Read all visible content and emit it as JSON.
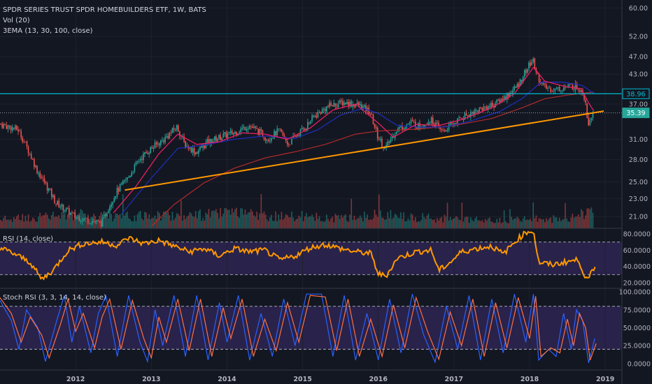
{
  "header": {
    "title": "SPDR SERIES TRUST SPDR HOMEBUILDERS ETF, 1W, BATS",
    "volume_label": "Vol (20)",
    "ema_label": "3EMA (13, 30, 100, close)"
  },
  "colors": {
    "background": "#131722",
    "up": "#26a69a",
    "down": "#ef5350",
    "ema_fast": "#e91e63",
    "ema_mid": "#1e2db5",
    "ema_slow": "#b22a2a",
    "trendline": "#ff9800",
    "horizontal_line": "#00bcd4",
    "rsi": "#ff9800",
    "stoch_k": "#2962ff",
    "stoch_d": "#ff7043",
    "band": "#3d2c6b"
  },
  "chart_data": [
    {
      "type": "candlestick",
      "name": "price",
      "x_ticks": [
        "2012",
        "2013",
        "2014",
        "2015",
        "2016",
        "2017",
        "2018",
        "2019"
      ],
      "y_scale": "log",
      "y_ticks": [
        "60.00",
        "52.00",
        "47.00",
        "43.00",
        "37.00",
        "31.00",
        "28.00",
        "25.00",
        "23.00",
        "21.00"
      ],
      "ylim": [
        19.8,
        62
      ],
      "price_path": [
        [
          2011.0,
          33.5
        ],
        [
          2011.25,
          32.5
        ],
        [
          2011.5,
          26.5
        ],
        [
          2011.75,
          22.5
        ],
        [
          2012.0,
          21.0
        ],
        [
          2012.35,
          20.3
        ],
        [
          2012.42,
          21.6
        ],
        [
          2012.55,
          23.8
        ],
        [
          2012.7,
          25.5
        ],
        [
          2012.85,
          28.0
        ],
        [
          2013.0,
          29.5
        ],
        [
          2013.18,
          31.0
        ],
        [
          2013.35,
          33.0
        ],
        [
          2013.45,
          30.2
        ],
        [
          2013.6,
          29.0
        ],
        [
          2013.75,
          30.5
        ],
        [
          2013.95,
          31.5
        ],
        [
          2014.1,
          32.0
        ],
        [
          2014.3,
          33.2
        ],
        [
          2014.45,
          32.0
        ],
        [
          2014.55,
          31.0
        ],
        [
          2014.7,
          32.4
        ],
        [
          2014.82,
          30.2
        ],
        [
          2014.92,
          31.5
        ],
        [
          2015.05,
          33.0
        ],
        [
          2015.15,
          34.6
        ],
        [
          2015.35,
          36.6
        ],
        [
          2015.55,
          37.3
        ],
        [
          2015.75,
          36.8
        ],
        [
          2015.9,
          35.5
        ],
        [
          2016.0,
          31.5
        ],
        [
          2016.1,
          29.5
        ],
        [
          2016.25,
          32.5
        ],
        [
          2016.45,
          33.8
        ],
        [
          2016.55,
          33.0
        ],
        [
          2016.7,
          34.2
        ],
        [
          2016.85,
          32.2
        ],
        [
          2016.95,
          33.0
        ],
        [
          2017.1,
          34.5
        ],
        [
          2017.25,
          35.5
        ],
        [
          2017.4,
          36.3
        ],
        [
          2017.55,
          37.0
        ],
        [
          2017.7,
          38.5
        ],
        [
          2017.85,
          40.5
        ],
        [
          2017.95,
          43.5
        ],
        [
          2018.05,
          46.2
        ],
        [
          2018.12,
          42.3
        ],
        [
          2018.2,
          40.2
        ],
        [
          2018.35,
          39.8
        ],
        [
          2018.5,
          40.3
        ],
        [
          2018.6,
          40.5
        ],
        [
          2018.7,
          39.8
        ],
        [
          2018.75,
          37.5
        ],
        [
          2018.78,
          33.5
        ],
        [
          2018.82,
          35.0
        ]
      ],
      "ema_fast_path": [
        [
          2012.5,
          21.4
        ],
        [
          2012.8,
          24.5
        ],
        [
          2013.1,
          28.8
        ],
        [
          2013.35,
          31.8
        ],
        [
          2013.6,
          30.2
        ],
        [
          2013.9,
          30.6
        ],
        [
          2014.2,
          32.0
        ],
        [
          2014.5,
          31.8
        ],
        [
          2014.8,
          31.0
        ],
        [
          2015.1,
          32.8
        ],
        [
          2015.4,
          35.9
        ],
        [
          2015.7,
          37.0
        ],
        [
          2016.0,
          33.6
        ],
        [
          2016.2,
          31.3
        ],
        [
          2016.5,
          33.4
        ],
        [
          2016.8,
          33.2
        ],
        [
          2017.1,
          34.2
        ],
        [
          2017.5,
          36.3
        ],
        [
          2017.8,
          39.0
        ],
        [
          2018.05,
          44.5
        ],
        [
          2018.2,
          41.5
        ],
        [
          2018.5,
          40.3
        ],
        [
          2018.68,
          40.0
        ],
        [
          2018.78,
          37.2
        ],
        [
          2018.85,
          35.7
        ]
      ],
      "ema_mid_path": [
        [
          2012.6,
          21.2
        ],
        [
          2013.0,
          25.5
        ],
        [
          2013.35,
          29.6
        ],
        [
          2013.7,
          30.1
        ],
        [
          2014.1,
          31.0
        ],
        [
          2014.5,
          31.5
        ],
        [
          2014.9,
          31.1
        ],
        [
          2015.2,
          32.5
        ],
        [
          2015.5,
          35.0
        ],
        [
          2015.8,
          36.2
        ],
        [
          2016.0,
          35.3
        ],
        [
          2016.25,
          33.2
        ],
        [
          2016.6,
          32.9
        ],
        [
          2016.9,
          33.0
        ],
        [
          2017.2,
          33.9
        ],
        [
          2017.6,
          35.6
        ],
        [
          2017.9,
          38.0
        ],
        [
          2018.15,
          41.3
        ],
        [
          2018.45,
          41.3
        ],
        [
          2018.7,
          40.6
        ],
        [
          2018.85,
          39.0
        ]
      ],
      "ema_slow_path": [
        [
          2013.0,
          20.0
        ],
        [
          2013.3,
          22.3
        ],
        [
          2013.7,
          24.9
        ],
        [
          2014.1,
          26.8
        ],
        [
          2014.5,
          28.2
        ],
        [
          2014.9,
          29.1
        ],
        [
          2015.3,
          30.2
        ],
        [
          2015.7,
          31.8
        ],
        [
          2016.0,
          32.3
        ],
        [
          2016.5,
          32.6
        ],
        [
          2017.0,
          33.2
        ],
        [
          2017.5,
          34.4
        ],
        [
          2017.9,
          36.3
        ],
        [
          2018.2,
          38.0
        ],
        [
          2018.5,
          38.7
        ],
        [
          2018.85,
          39.3
        ]
      ],
      "horizontal_line": 38.96,
      "trendline": [
        [
          2012.65,
          24.0
        ],
        [
          2018.98,
          35.7
        ]
      ],
      "volume_profile": [
        [
          2011.0,
          0.35
        ],
        [
          2011.5,
          0.45
        ],
        [
          2012.0,
          0.55
        ],
        [
          2012.5,
          0.5
        ],
        [
          2012.75,
          0.45
        ],
        [
          2013.0,
          0.55
        ],
        [
          2013.5,
          0.5
        ],
        [
          2014.0,
          0.6
        ],
        [
          2014.5,
          0.5
        ],
        [
          2015.0,
          0.45
        ],
        [
          2015.5,
          0.4
        ],
        [
          2016.0,
          0.55
        ],
        [
          2016.5,
          0.45
        ],
        [
          2017.0,
          0.35
        ],
        [
          2017.5,
          0.3
        ],
        [
          2018.0,
          0.35
        ],
        [
          2018.5,
          0.4
        ],
        [
          2018.82,
          0.7
        ]
      ],
      "price_badges": [
        {
          "value": "38.96",
          "color": "#00bcd4",
          "text_color": "#00bcd4"
        },
        {
          "value": "35.39",
          "color": "#26a69a",
          "text_color": "#ffffff"
        }
      ]
    },
    {
      "type": "line",
      "name": "RSI",
      "label": "RSI (14, close)",
      "y_ticks": [
        "80.0000",
        "60.0000",
        "40.0000",
        "20.0000"
      ],
      "ylim": [
        14,
        86
      ],
      "upper_band": 70,
      "lower_band": 30,
      "path": [
        [
          2011.0,
          63
        ],
        [
          2011.2,
          55
        ],
        [
          2011.4,
          45
        ],
        [
          2011.55,
          24
        ],
        [
          2011.7,
          35
        ],
        [
          2011.9,
          60
        ],
        [
          2012.1,
          68
        ],
        [
          2012.35,
          70
        ],
        [
          2012.55,
          66
        ],
        [
          2012.7,
          75
        ],
        [
          2012.9,
          68
        ],
        [
          2013.1,
          72
        ],
        [
          2013.3,
          65
        ],
        [
          2013.5,
          58
        ],
        [
          2013.7,
          62
        ],
        [
          2013.9,
          53
        ],
        [
          2014.1,
          62
        ],
        [
          2014.3,
          58
        ],
        [
          2014.5,
          60
        ],
        [
          2014.7,
          48
        ],
        [
          2014.9,
          53
        ],
        [
          2015.1,
          63
        ],
        [
          2015.3,
          67
        ],
        [
          2015.5,
          62
        ],
        [
          2015.7,
          58
        ],
        [
          2015.9,
          56
        ],
        [
          2016.0,
          31
        ],
        [
          2016.1,
          28
        ],
        [
          2016.25,
          50
        ],
        [
          2016.5,
          58
        ],
        [
          2016.7,
          60
        ],
        [
          2016.8,
          35
        ],
        [
          2016.95,
          45
        ],
        [
          2017.1,
          58
        ],
        [
          2017.3,
          62
        ],
        [
          2017.5,
          65
        ],
        [
          2017.65,
          55
        ],
        [
          2017.8,
          70
        ],
        [
          2017.95,
          82
        ],
        [
          2018.05,
          84
        ],
        [
          2018.12,
          45
        ],
        [
          2018.3,
          42
        ],
        [
          2018.5,
          46
        ],
        [
          2018.65,
          48
        ],
        [
          2018.72,
          30
        ],
        [
          2018.78,
          22
        ],
        [
          2018.82,
          34
        ],
        [
          2018.87,
          38
        ]
      ]
    },
    {
      "type": "line",
      "name": "Stoch RSI",
      "label": "Stoch RSI (3, 3, 14, 14, close)",
      "y_ticks": [
        "100.0000",
        "75.0000",
        "50.0000",
        "25.0000",
        "0.0000"
      ],
      "ylim": [
        -8,
        104
      ],
      "upper_band": 80,
      "lower_band": 20,
      "k_series": [
        [
          2011.0,
          88
        ],
        [
          2011.15,
          60
        ],
        [
          2011.25,
          20
        ],
        [
          2011.35,
          75
        ],
        [
          2011.5,
          50
        ],
        [
          2011.6,
          3
        ],
        [
          2011.75,
          60
        ],
        [
          2011.85,
          95
        ],
        [
          2011.95,
          30
        ],
        [
          2012.05,
          80
        ],
        [
          2012.2,
          15
        ],
        [
          2012.3,
          70
        ],
        [
          2012.4,
          95
        ],
        [
          2012.55,
          10
        ],
        [
          2012.7,
          95
        ],
        [
          2012.85,
          30
        ],
        [
          2012.95,
          3
        ],
        [
          2013.05,
          75
        ],
        [
          2013.15,
          25
        ],
        [
          2013.3,
          95
        ],
        [
          2013.45,
          10
        ],
        [
          2013.6,
          95
        ],
        [
          2013.75,
          5
        ],
        [
          2013.9,
          85
        ],
        [
          2014.0,
          30
        ],
        [
          2014.15,
          95
        ],
        [
          2014.3,
          5
        ],
        [
          2014.45,
          70
        ],
        [
          2014.6,
          10
        ],
        [
          2014.75,
          90
        ],
        [
          2014.9,
          25
        ],
        [
          2015.05,
          97
        ],
        [
          2015.25,
          97
        ],
        [
          2015.4,
          10
        ],
        [
          2015.55,
          95
        ],
        [
          2015.7,
          5
        ],
        [
          2015.85,
          70
        ],
        [
          2016.0,
          5
        ],
        [
          2016.15,
          90
        ],
        [
          2016.3,
          15
        ],
        [
          2016.45,
          97
        ],
        [
          2016.6,
          40
        ],
        [
          2016.75,
          2
        ],
        [
          2016.9,
          80
        ],
        [
          2017.05,
          20
        ],
        [
          2017.2,
          95
        ],
        [
          2017.35,
          5
        ],
        [
          2017.5,
          90
        ],
        [
          2017.65,
          15
        ],
        [
          2017.8,
          97
        ],
        [
          2017.95,
          30
        ],
        [
          2018.05,
          97
        ],
        [
          2018.12,
          5
        ],
        [
          2018.25,
          20
        ],
        [
          2018.35,
          10
        ],
        [
          2018.45,
          70
        ],
        [
          2018.55,
          20
        ],
        [
          2018.62,
          75
        ],
        [
          2018.7,
          60
        ],
        [
          2018.78,
          1
        ],
        [
          2018.86,
          35
        ]
      ],
      "d_series": [
        [
          2011.0,
          92
        ],
        [
          2011.15,
          70
        ],
        [
          2011.28,
          30
        ],
        [
          2011.4,
          65
        ],
        [
          2011.55,
          40
        ],
        [
          2011.65,
          8
        ],
        [
          2011.8,
          55
        ],
        [
          2011.9,
          90
        ],
        [
          2012.0,
          45
        ],
        [
          2012.1,
          70
        ],
        [
          2012.25,
          22
        ],
        [
          2012.35,
          65
        ],
        [
          2012.45,
          90
        ],
        [
          2012.6,
          20
        ],
        [
          2012.75,
          88
        ],
        [
          2012.9,
          35
        ],
        [
          2013.0,
          8
        ],
        [
          2013.1,
          65
        ],
        [
          2013.2,
          30
        ],
        [
          2013.35,
          90
        ],
        [
          2013.5,
          18
        ],
        [
          2013.65,
          90
        ],
        [
          2013.8,
          10
        ],
        [
          2013.95,
          78
        ],
        [
          2014.05,
          35
        ],
        [
          2014.2,
          90
        ],
        [
          2014.35,
          10
        ],
        [
          2014.5,
          62
        ],
        [
          2014.65,
          18
        ],
        [
          2014.8,
          85
        ],
        [
          2014.95,
          30
        ],
        [
          2015.1,
          95
        ],
        [
          2015.3,
          93
        ],
        [
          2015.45,
          18
        ],
        [
          2015.6,
          90
        ],
        [
          2015.75,
          10
        ],
        [
          2015.9,
          62
        ],
        [
          2016.05,
          10
        ],
        [
          2016.2,
          82
        ],
        [
          2016.35,
          22
        ],
        [
          2016.5,
          92
        ],
        [
          2016.65,
          45
        ],
        [
          2016.8,
          6
        ],
        [
          2016.95,
          72
        ],
        [
          2017.1,
          25
        ],
        [
          2017.25,
          90
        ],
        [
          2017.4,
          10
        ],
        [
          2017.55,
          85
        ],
        [
          2017.7,
          22
        ],
        [
          2017.85,
          92
        ],
        [
          2018.0,
          35
        ],
        [
          2018.08,
          94
        ],
        [
          2018.15,
          10
        ],
        [
          2018.28,
          22
        ],
        [
          2018.4,
          15
        ],
        [
          2018.5,
          62
        ],
        [
          2018.58,
          25
        ],
        [
          2018.66,
          70
        ],
        [
          2018.74,
          50
        ],
        [
          2018.8,
          5
        ],
        [
          2018.88,
          28
        ]
      ]
    }
  ]
}
